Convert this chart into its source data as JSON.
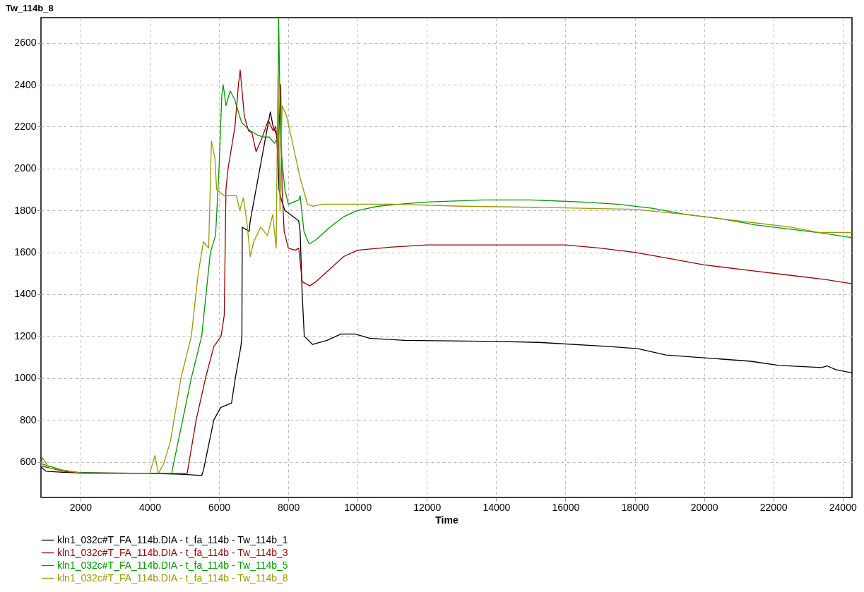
{
  "chart_data": {
    "type": "line",
    "title": "Tw_114b_8",
    "xlabel": "Time",
    "xlim": [
      860,
      24270
    ],
    "ylim": [
      430,
      2720
    ],
    "xticks": [
      2000,
      4000,
      6000,
      8000,
      10000,
      12000,
      14000,
      16000,
      18000,
      20000,
      22000,
      24000
    ],
    "yticks": [
      600,
      800,
      1000,
      1200,
      1400,
      1600,
      1800,
      2000,
      2200,
      2400,
      2600
    ],
    "grid": true,
    "legend": "bottom",
    "line_style": "solid",
    "marker": "none",
    "series": [
      {
        "name": "kln1_032c#T_FA_114b.DIA - t_fa_114b - Tw_114b_1",
        "color": "#000000",
        "x": [
          870,
          1000,
          1500,
          2000,
          4000,
          5000,
          5500,
          5550,
          5850,
          6050,
          6360,
          6470,
          6630,
          6660,
          6670,
          6870,
          6900,
          7480,
          7560,
          7690,
          7730,
          7800,
          7900,
          8300,
          8340,
          8400,
          8460,
          8700,
          9120,
          9520,
          9930,
          10340,
          11360,
          14000,
          15230,
          17270,
          18090,
          18900,
          19720,
          20530,
          21350,
          22160,
          23390,
          23550,
          23800,
          24270
        ],
        "values": [
          575,
          555,
          550,
          548,
          545,
          540,
          535,
          560,
          800,
          860,
          880,
          1000,
          1150,
          1200,
          1720,
          1700,
          1750,
          2270,
          2200,
          2150,
          1900,
          1850,
          1800,
          1750,
          1700,
          1400,
          1200,
          1160,
          1180,
          1210,
          1210,
          1190,
          1180,
          1175,
          1170,
          1150,
          1140,
          1110,
          1100,
          1090,
          1080,
          1060,
          1050,
          1058,
          1040,
          1025
        ]
      },
      {
        "name": "kln1_032c#T_FA_114b.DIA - t_fa_114b - Tw_114b_3",
        "color": "#990000",
        "x": [
          870,
          1500,
          2000,
          4000,
          5080,
          5340,
          5610,
          5850,
          6060,
          6150,
          6200,
          6260,
          6460,
          6560,
          6610,
          6730,
          6850,
          6950,
          7070,
          7250,
          7420,
          7560,
          7640,
          7700,
          7780,
          7820,
          7880,
          8000,
          8200,
          8300,
          8400,
          8620,
          8800,
          9200,
          9600,
          10000,
          11000,
          12000,
          16000,
          17000,
          18000,
          19000,
          20000,
          21500,
          22500,
          23500,
          24270
        ],
        "values": [
          580,
          555,
          545,
          545,
          545,
          800,
          1000,
          1150,
          1200,
          1300,
          1900,
          2000,
          2200,
          2400,
          2470,
          2250,
          2180,
          2170,
          2080,
          2150,
          2230,
          2180,
          2200,
          2050,
          2400,
          1900,
          1700,
          1620,
          1610,
          1620,
          1460,
          1440,
          1460,
          1520,
          1580,
          1610,
          1625,
          1635,
          1635,
          1620,
          1600,
          1570,
          1540,
          1510,
          1490,
          1470,
          1450
        ]
      },
      {
        "name": "kln1_032c#T_FA_114b.DIA - t_fa_114b - Tw_114b_5",
        "color": "#009900",
        "x": [
          870,
          1500,
          2000,
          3000,
          4630,
          4950,
          5200,
          5500,
          5750,
          5900,
          6000,
          6080,
          6120,
          6200,
          6320,
          6450,
          6650,
          6900,
          7100,
          7300,
          7450,
          7600,
          7700,
          7720,
          7780,
          7900,
          8000,
          8300,
          8340,
          8450,
          8600,
          8800,
          9200,
          9600,
          10000,
          10600,
          11200,
          12000,
          13600,
          15000,
          16500,
          17500,
          18500,
          19500,
          20500,
          21500,
          22500,
          23500,
          24270
        ],
        "values": [
          590,
          560,
          548,
          545,
          545,
          800,
          1000,
          1200,
          1600,
          1680,
          2000,
          2350,
          2400,
          2300,
          2370,
          2330,
          2220,
          2180,
          2160,
          2150,
          2150,
          2120,
          2150,
          2720,
          2100,
          1900,
          1830,
          1850,
          1870,
          1700,
          1640,
          1660,
          1720,
          1770,
          1800,
          1820,
          1830,
          1840,
          1850,
          1850,
          1840,
          1830,
          1810,
          1780,
          1760,
          1730,
          1710,
          1690,
          1670
        ]
      },
      {
        "name": "kln1_032c#T_FA_114b.DIA - t_fa_114b - Tw_114b_8",
        "color": "#999900",
        "x": [
          870,
          900,
          1100,
          1700,
          2100,
          3000,
          4000,
          4150,
          4250,
          4400,
          4600,
          4900,
          5200,
          5400,
          5550,
          5700,
          5780,
          5880,
          5930,
          6150,
          6500,
          6600,
          6700,
          6800,
          6900,
          7000,
          7200,
          7400,
          7550,
          7650,
          7700,
          7760,
          7820,
          7950,
          8150,
          8350,
          8550,
          8700,
          9000,
          11000,
          13000,
          15000,
          18000,
          19500,
          20500,
          21500,
          22500,
          23300,
          24270
        ],
        "values": [
          580,
          620,
          570,
          555,
          545,
          545,
          545,
          630,
          545,
          590,
          700,
          1000,
          1200,
          1500,
          1650,
          1620,
          2130,
          2050,
          1900,
          1870,
          1870,
          1800,
          1860,
          1750,
          1580,
          1650,
          1720,
          1680,
          1780,
          1620,
          2450,
          1800,
          2300,
          2250,
          2100,
          1950,
          1830,
          1820,
          1830,
          1830,
          1820,
          1815,
          1805,
          1780,
          1760,
          1740,
          1720,
          1695,
          1695
        ]
      }
    ]
  }
}
